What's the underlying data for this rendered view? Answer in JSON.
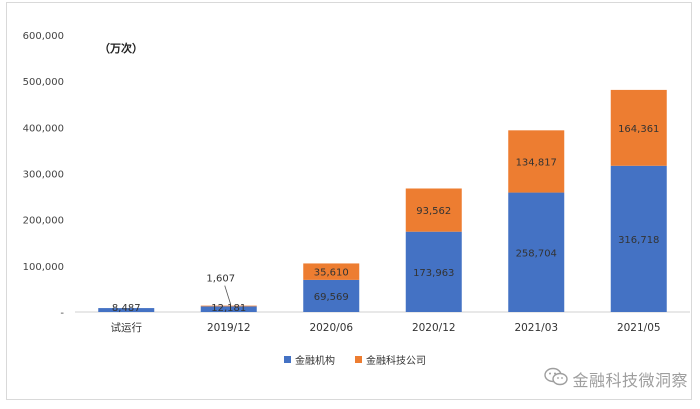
{
  "chart_data": {
    "type": "bar",
    "stacked": true,
    "unit_label": "（万次）",
    "categories": [
      "试运行",
      "2019/12",
      "2020/06",
      "2020/12",
      "2021/03",
      "2021/05"
    ],
    "series": [
      {
        "name": "金融机构",
        "color": "#4472C4",
        "values": [
          8487,
          12181,
          69569,
          173963,
          258704,
          316718
        ],
        "labels": [
          "8,487",
          "12,181",
          "69,569",
          "173,963",
          "258,704",
          "316,718"
        ]
      },
      {
        "name": "金融科技公司",
        "color": "#ED7D31",
        "values": [
          0,
          1607,
          35610,
          93562,
          134817,
          164361
        ],
        "labels": [
          "",
          "1,607",
          "35,610",
          "93,562",
          "134,817",
          "164,361"
        ]
      }
    ],
    "ylim": [
      0,
      600000
    ],
    "yticks": [
      0,
      100000,
      200000,
      300000,
      400000,
      500000,
      600000
    ],
    "ytick_labels": [
      "-",
      "100,000",
      "200,000",
      "300,000",
      "400,000",
      "500,000",
      "600,000"
    ],
    "grid": false,
    "legend_position": "bottom"
  },
  "watermark": {
    "text": "金融科技微洞察",
    "icon": "wechat-icon"
  }
}
